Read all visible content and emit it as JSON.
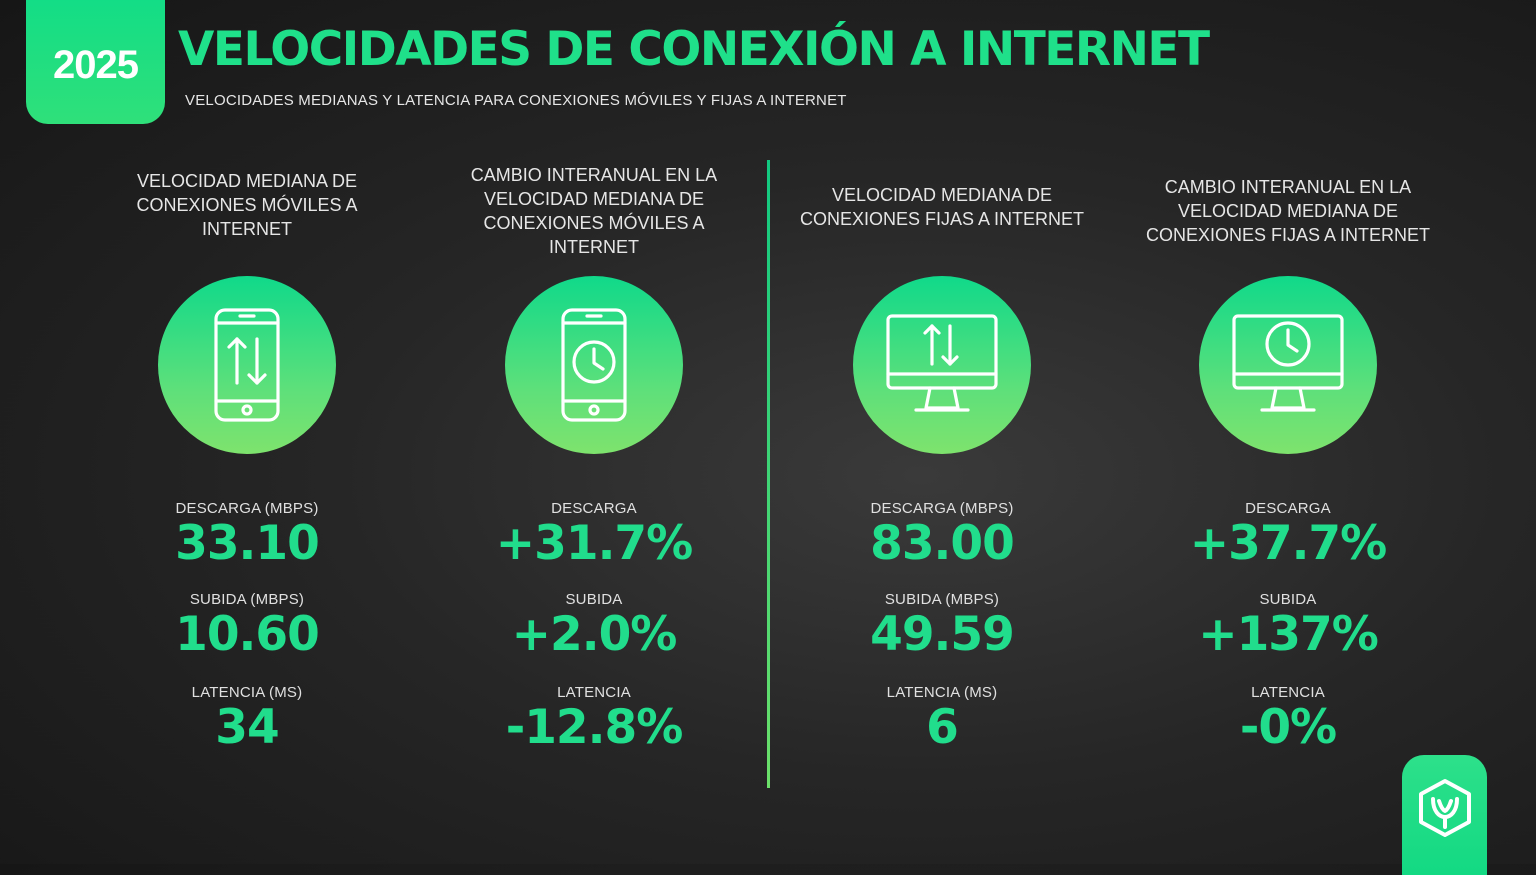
{
  "header": {
    "year": "2025",
    "title": "VELOCIDADES DE CONEXIÓN A INTERNET",
    "subtitle": "VELOCIDADES MEDIANAS Y LATENCIA PARA CONEXIONES MÓVILES Y FIJAS A INTERNET"
  },
  "columns": [
    {
      "heading": "VELOCIDAD MEDIANA DE CONEXIONES MÓVILES A INTERNET",
      "icon": "smartphone-arrows-icon",
      "metrics": [
        {
          "label": "DESCARGA (MBPS)",
          "value": "33.10"
        },
        {
          "label": "SUBIDA (MBPS)",
          "value": "10.60"
        },
        {
          "label": "LATENCIA (MS)",
          "value": "34"
        }
      ]
    },
    {
      "heading": "CAMBIO INTERANUAL EN LA VELOCIDAD MEDIANA DE CONEXIONES MÓVILES A INTERNET",
      "icon": "smartphone-clock-icon",
      "metrics": [
        {
          "label": "DESCARGA",
          "value": "+31.7%"
        },
        {
          "label": "SUBIDA",
          "value": "+2.0%"
        },
        {
          "label": "LATENCIA",
          "value": "-12.8%"
        }
      ]
    },
    {
      "heading": "VELOCIDAD MEDIANA DE CONEXIONES FIJAS A INTERNET",
      "icon": "monitor-arrows-icon",
      "metrics": [
        {
          "label": "DESCARGA (MBPS)",
          "value": "83.00"
        },
        {
          "label": "SUBIDA (MBPS)",
          "value": "49.59"
        },
        {
          "label": "LATENCIA (MS)",
          "value": "6"
        }
      ]
    },
    {
      "heading": "CAMBIO INTERANUAL EN LA VELOCIDAD MEDIANA DE CONEXIONES FIJAS A INTERNET",
      "icon": "monitor-clock-icon",
      "metrics": [
        {
          "label": "DESCARGA",
          "value": "+37.7%"
        },
        {
          "label": "SUBIDA",
          "value": "+137%"
        },
        {
          "label": "LATENCIA",
          "value": "-0%"
        }
      ]
    }
  ],
  "colors": {
    "accent": "#1fe08a",
    "background": "#262626"
  },
  "logo": {
    "icon": "brand-logo-icon"
  }
}
